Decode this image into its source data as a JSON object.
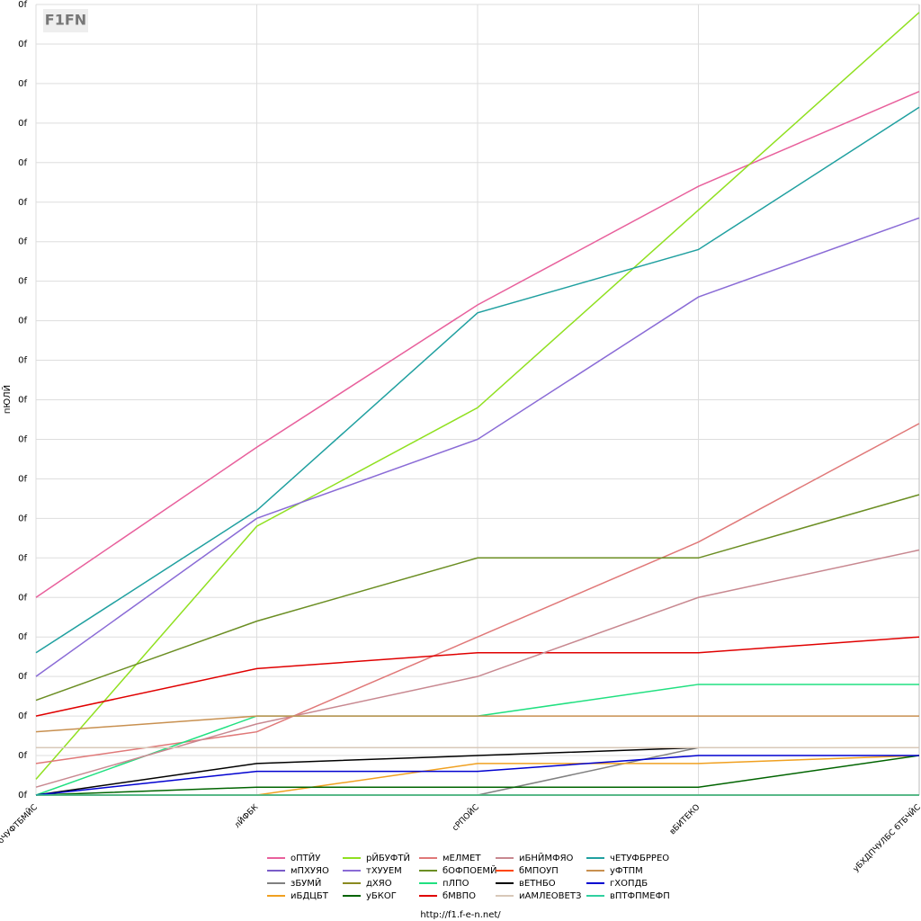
{
  "logo": "F1FN",
  "footer": "http://f1.f-e-n.net/",
  "chart_data": {
    "type": "line",
    "y_label": "пЮЛЙ",
    "categories": [
      "бЧУФТБМЙС",
      "лЙФБК",
      "сРПОЙС",
      "вБИТЕКО",
      "уБХДПЧУЛБС бТБЧЙС"
    ],
    "ylim": [
      0,
      20
    ],
    "yticks": [
      {
        "value": 0,
        "label": "0f"
      },
      {
        "value": 1,
        "label": "0f"
      },
      {
        "value": 2,
        "label": "0f"
      },
      {
        "value": 3,
        "label": "0f"
      },
      {
        "value": 4,
        "label": "0f"
      },
      {
        "value": 5,
        "label": "0f"
      },
      {
        "value": 6,
        "label": "0f"
      },
      {
        "value": 7,
        "label": "0f"
      },
      {
        "value": 8,
        "label": "0f"
      },
      {
        "value": 9,
        "label": "0f"
      },
      {
        "value": 10,
        "label": "0f"
      },
      {
        "value": 11,
        "label": "0f"
      },
      {
        "value": 12,
        "label": "0f"
      },
      {
        "value": 13,
        "label": "0f"
      },
      {
        "value": 14,
        "label": "0f"
      },
      {
        "value": 15,
        "label": "0f"
      },
      {
        "value": 16,
        "label": "0f"
      },
      {
        "value": 17,
        "label": "0f"
      },
      {
        "value": 18,
        "label": "0f"
      },
      {
        "value": 19,
        "label": "0f"
      },
      {
        "value": 20,
        "label": "0f"
      }
    ],
    "grid": true,
    "series": [
      {
        "name": "оПТЙУ",
        "color": "#e8609c",
        "values": [
          5.0,
          8.8,
          12.4,
          15.4,
          17.8
        ]
      },
      {
        "name": "мПХУЯО",
        "color": "#7a5cc8",
        "values": [
          0,
          0,
          0,
          0,
          0
        ]
      },
      {
        "name": "зБУМЙ",
        "color": "#808080",
        "values": [
          null,
          null,
          0,
          1.2,
          1.2
        ]
      },
      {
        "name": "иБДЦБТ",
        "color": "#f0a020",
        "values": [
          null,
          0,
          0.8,
          0.8,
          1.0
        ]
      },
      {
        "name": "рЙБУФТЙ",
        "color": "#90e020",
        "values": [
          0.4,
          6.8,
          9.8,
          14.8,
          19.8
        ]
      },
      {
        "name": "тХУУЕМ",
        "color": "#8a6bd6",
        "values": [
          3.0,
          7.0,
          9.0,
          12.6,
          14.6
        ]
      },
      {
        "name": "дХЯО",
        "color": "#8a8a20",
        "values": [
          0,
          0,
          0,
          0,
          0
        ]
      },
      {
        "name": "уБКОГ",
        "color": "#006400",
        "values": [
          0,
          0.2,
          0.2,
          0.2,
          1.0
        ]
      },
      {
        "name": "мЕЛМЕТ",
        "color": "#e07878",
        "values": [
          0.8,
          1.6,
          4.0,
          6.4,
          9.4
        ]
      },
      {
        "name": "бОФПОЕМЙ",
        "color": "#6b8e23",
        "values": [
          2.4,
          4.4,
          6.0,
          6.0,
          7.6
        ]
      },
      {
        "name": "пЛПО",
        "color": "#20e080",
        "values": [
          0,
          2.0,
          2.0,
          2.8,
          2.8
        ]
      },
      {
        "name": "бМВПО",
        "color": "#e00000",
        "values": [
          2.0,
          3.2,
          3.6,
          3.6,
          4.0
        ]
      },
      {
        "name": "иБНЙМФЯО",
        "color": "#c88890",
        "values": [
          0.2,
          1.8,
          3.0,
          5.0,
          6.2
        ]
      },
      {
        "name": "бМПОУП",
        "color": "#ff4500",
        "values": [
          0,
          0,
          0,
          0,
          0
        ]
      },
      {
        "name": "вЕТНБО",
        "color": "#000000",
        "values": [
          0,
          0.8,
          1.0,
          1.2,
          1.2
        ]
      },
      {
        "name": "иАМЛЕОВЕТЗ",
        "color": "#d8c8b8",
        "values": [
          1.2,
          1.2,
          1.2,
          1.2,
          1.2
        ]
      },
      {
        "name": "чЕТУФБРРЕО",
        "color": "#20a0a0",
        "values": [
          3.6,
          7.2,
          12.2,
          13.8,
          17.4
        ]
      },
      {
        "name": "уФТПМ",
        "color": "#c89050",
        "values": [
          1.6,
          2.0,
          2.0,
          2.0,
          2.0
        ]
      },
      {
        "name": "гХОПДБ",
        "color": "#0000d0",
        "values": [
          0,
          0.6,
          0.6,
          1.0,
          1.0
        ]
      },
      {
        "name": "вПТФПМЕФП",
        "color": "#30d0a0",
        "values": [
          0,
          0,
          0,
          0,
          0
        ]
      }
    ]
  }
}
